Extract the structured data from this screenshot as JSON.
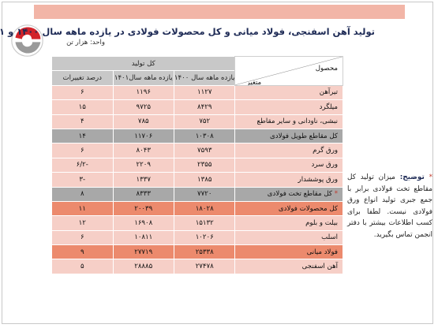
{
  "title": "تولید آهن اسفنجی، فولاد میانی و کل محصولات فولادی در یازده ماهه سال ۱۴۰۰ و ۱۴۰۱",
  "unit": "واحد: هزار تن",
  "header": {
    "group": "کل تولید",
    "col1": "یازده ماهه سال ۱۴۰۰",
    "col2": "یازده ماهه سال۱۴۰۱",
    "col3": "درصد تغییرات",
    "product": "محصول",
    "variable": "متغیر"
  },
  "rows": [
    {
      "label": "تیرآهن",
      "v1400": "۱۱۲۷",
      "v1401": "۱۱۹۶",
      "pct": "۶",
      "style": "light"
    },
    {
      "label": "میلگرد",
      "v1400": "۸۴۲۹",
      "v1401": "۹۷۲۵",
      "pct": "۱۵",
      "style": "light"
    },
    {
      "label": "نبشی، ناودانی و سایر مقاطع",
      "v1400": "۷۵۲",
      "v1401": "۷۸۵",
      "pct": "۴",
      "style": "light"
    },
    {
      "label": "کل مقاطع طویل فولادی",
      "v1400": "۱۰۳۰۸",
      "v1401": "۱۱۷۰۶",
      "pct": "۱۴",
      "style": "gray"
    },
    {
      "label": "ورق گرم",
      "v1400": "۷۵۹۳",
      "v1401": "۸۰۴۳",
      "pct": "۶",
      "style": "light"
    },
    {
      "label": "ورق سرد",
      "v1400": "۲۳۵۵",
      "v1401": "۲۲۰۹",
      "pct": "-۶/۲",
      "style": "light"
    },
    {
      "label": "ورق پوششدار",
      "v1400": "۱۳۸۵",
      "v1401": "۱۳۳۷",
      "pct": "-۳",
      "style": "light"
    },
    {
      "label": "کل مقاطع تخت فولادی",
      "star": "*",
      "v1400": "۷۷۲۰",
      "v1401": "۸۳۳۳",
      "pct": "۸",
      "style": "gray"
    },
    {
      "label": "کل محصولات فولادی",
      "v1400": "۱۸۰۲۸",
      "v1401": "۲۰۰۳۹",
      "pct": "۱۱",
      "style": "orange"
    },
    {
      "label": "بیلت و بلوم",
      "v1400": "۱۵۱۳۲",
      "v1401": "۱۶۹۰۸",
      "pct": "۱۲",
      "style": "light"
    },
    {
      "label": "اسلب",
      "v1400": "۱۰۲۰۶",
      "v1401": "۱۰۸۱۱",
      "pct": "۶",
      "style": "light"
    },
    {
      "label": "فولاد میانی",
      "v1400": "۲۵۳۳۸",
      "v1401": "۲۷۷۱۹",
      "pct": "۹",
      "style": "orange"
    },
    {
      "label": "آهن اسفنجی",
      "v1400": "۲۷۴۷۸",
      "v1401": "۲۸۸۸۵",
      "pct": "۵",
      "style": "light"
    }
  ],
  "note": {
    "star": "*",
    "lead": "توضیح:",
    "text": "میزان تولید کل مقاطع تخت فولادی برابر با جمع جبری تولید انواع ورق فولادی نیست. لطفا برای کسب اطلاعات بیشتر با دفتر انجمن تماس بگیرید."
  },
  "colors": {
    "topbar": "#f2b5a7",
    "header": "#c8c8c8",
    "row_light": "#f6cfc7",
    "row_gray": "#a8a8a8",
    "row_orange": "#ec8a6d",
    "title": "#1d2a55",
    "logo_red": "#d2232a"
  },
  "icons": {
    "logo": "iranian-steel-association-logo"
  }
}
